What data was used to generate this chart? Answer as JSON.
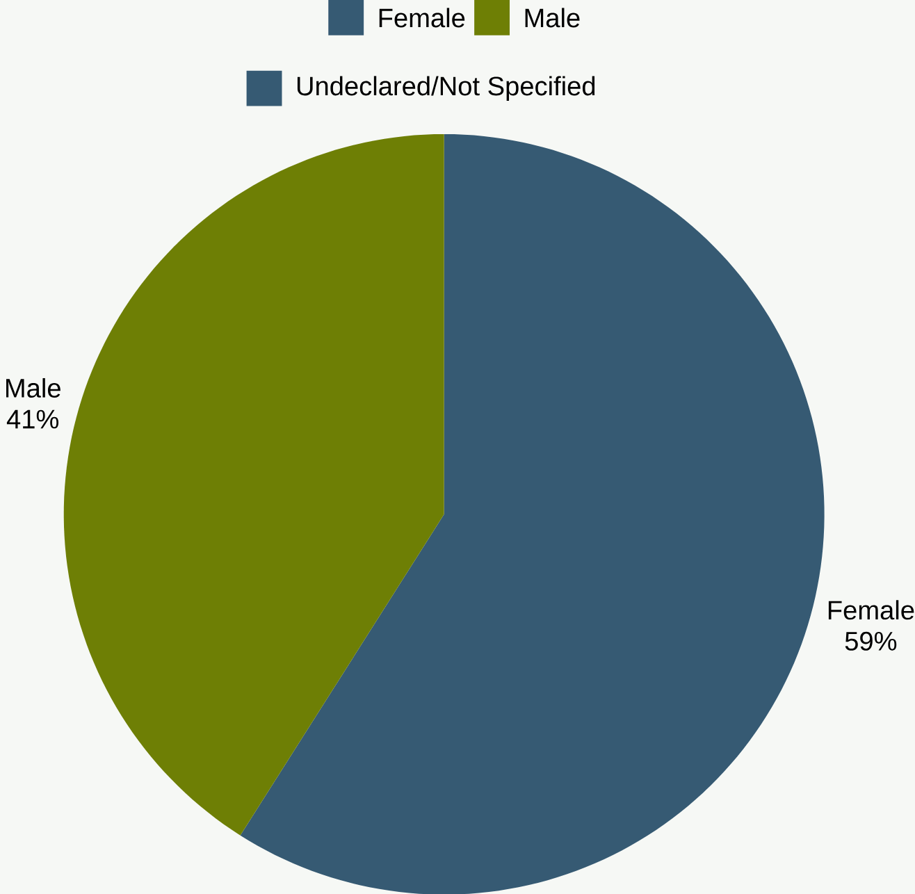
{
  "chart_data": {
    "type": "pie",
    "categories": [
      "Female",
      "Male",
      "Undeclared/Not Specified"
    ],
    "values": [
      59,
      41,
      0
    ],
    "value_labels": [
      "59%",
      "41%",
      null
    ],
    "colors": [
      "#365a73",
      "#6e7f05",
      "#365a73"
    ],
    "legend": "top"
  }
}
